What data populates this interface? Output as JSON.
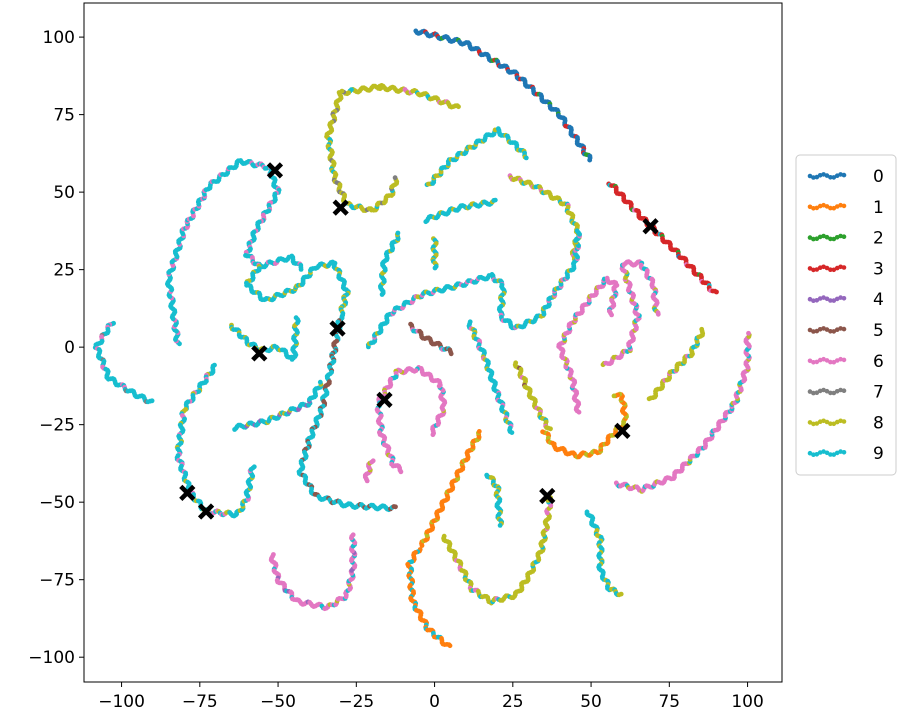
{
  "chart_data": {
    "type": "scatter",
    "title": "",
    "xlabel": "",
    "ylabel": "",
    "xlim": [
      -112,
      111
    ],
    "ylim": [
      -108,
      111
    ],
    "xticks": [
      -100,
      -75,
      -50,
      -25,
      0,
      25,
      50,
      75,
      100
    ],
    "xtick_labels": [
      "−100",
      "−75",
      "−50",
      "−25",
      "0",
      "25",
      "50",
      "75",
      "100"
    ],
    "yticks": [
      -100,
      -75,
      -50,
      -25,
      0,
      25,
      50,
      75,
      100
    ],
    "ytick_labels": [
      "−100",
      "−75",
      "−50",
      "−25",
      "0",
      "25",
      "50",
      "75",
      "100"
    ],
    "grid": false,
    "legend_position": "right",
    "legend": [
      {
        "label": "0",
        "color": "#1f77b4"
      },
      {
        "label": "1",
        "color": "#ff7f0e"
      },
      {
        "label": "2",
        "color": "#2ca02c"
      },
      {
        "label": "3",
        "color": "#d62728"
      },
      {
        "label": "4",
        "color": "#9467bd"
      },
      {
        "label": "5",
        "color": "#8c564b"
      },
      {
        "label": "6",
        "color": "#e377c2"
      },
      {
        "label": "7",
        "color": "#7f7f7f"
      },
      {
        "label": "8",
        "color": "#bcbd22"
      },
      {
        "label": "9",
        "color": "#17becf"
      }
    ],
    "curves": [
      {
        "dominant": "0",
        "mix": [
          "2",
          "3"
        ],
        "points": [
          [
            -6,
            102
          ],
          [
            10,
            98
          ],
          [
            26,
            88
          ],
          [
            40,
            75
          ],
          [
            50,
            60
          ]
        ]
      },
      {
        "dominant": "3",
        "mix": [
          "6",
          "9",
          "0",
          "2"
        ],
        "points": [
          [
            56,
            53
          ],
          [
            66,
            42
          ],
          [
            78,
            30
          ],
          [
            90,
            17
          ]
        ]
      },
      {
        "dominant": "9",
        "mix": [
          "6"
        ],
        "points": [
          [
            -82,
            1
          ],
          [
            -85,
            22
          ],
          [
            -80,
            38
          ],
          [
            -72,
            52
          ],
          [
            -62,
            60
          ],
          [
            -53,
            58
          ],
          [
            -50,
            50
          ],
          [
            -57,
            38
          ],
          [
            -60,
            30
          ],
          [
            -56,
            26
          ],
          [
            -46,
            29
          ],
          [
            -42,
            25
          ]
        ]
      },
      {
        "dominant": "9",
        "mix": [
          "8"
        ],
        "points": [
          [
            -56,
            26
          ],
          [
            -60,
            20
          ],
          [
            -54,
            15
          ],
          [
            -44,
            19
          ],
          [
            -38,
            26
          ],
          [
            -32,
            27
          ],
          [
            -28,
            18
          ],
          [
            -30,
            10
          ]
        ]
      },
      {
        "dominant": "9",
        "mix": [
          "5"
        ],
        "points": [
          [
            -30,
            10
          ],
          [
            -33,
            -6
          ],
          [
            -36,
            -20
          ],
          [
            -40,
            -30
          ],
          [
            -43,
            -40
          ],
          [
            -38,
            -48
          ],
          [
            -28,
            -51
          ],
          [
            -12,
            -52
          ]
        ]
      },
      {
        "dominant": "9",
        "mix": [
          "7",
          "6"
        ],
        "points": [
          [
            -103,
            8
          ],
          [
            -108,
            0
          ],
          [
            -104,
            -10
          ],
          [
            -96,
            -15
          ],
          [
            -90,
            -18
          ]
        ]
      },
      {
        "dominant": "9",
        "mix": [
          "8"
        ],
        "points": [
          [
            -65,
            7
          ],
          [
            -59,
            1
          ],
          [
            -55,
            -1
          ],
          [
            -50,
            0
          ],
          [
            -45,
            -4
          ],
          [
            -44,
            10
          ]
        ]
      },
      {
        "dominant": "9",
        "mix": [
          "8",
          "6"
        ],
        "points": [
          [
            -70,
            -6
          ],
          [
            -80,
            -20
          ],
          [
            -82,
            -35
          ],
          [
            -78,
            -47
          ],
          [
            -73,
            -53
          ],
          [
            -63,
            -54
          ],
          [
            -60,
            -49
          ],
          [
            -58,
            -38
          ]
        ]
      },
      {
        "dominant": "9",
        "mix": [
          "8",
          "4"
        ],
        "points": [
          [
            -64,
            -26
          ],
          [
            -54,
            -24
          ],
          [
            -40,
            -18
          ],
          [
            -36,
            -11
          ]
        ]
      },
      {
        "dominant": "8",
        "mix": [
          "9",
          "6"
        ],
        "points": [
          [
            -18,
            84
          ],
          [
            -5,
            82
          ],
          [
            8,
            77
          ]
        ]
      },
      {
        "dominant": "8",
        "mix": [
          "9",
          "7"
        ],
        "points": [
          [
            -17,
            84
          ],
          [
            -30,
            82
          ],
          [
            -34,
            68
          ],
          [
            -32,
            55
          ],
          [
            -28,
            46
          ],
          [
            -20,
            44
          ],
          [
            -14,
            49
          ],
          [
            -12,
            55
          ]
        ]
      },
      {
        "dominant": "9",
        "mix": [
          "8"
        ],
        "points": [
          [
            -2,
            52
          ],
          [
            5,
            60
          ],
          [
            14,
            66
          ],
          [
            20,
            70
          ],
          [
            25,
            66
          ],
          [
            30,
            61
          ]
        ]
      },
      {
        "dominant": "8",
        "mix": [
          "9",
          "6"
        ],
        "points": [
          [
            24,
            55
          ],
          [
            32,
            52
          ],
          [
            42,
            46
          ],
          [
            46,
            37
          ],
          [
            44,
            28
          ]
        ]
      },
      {
        "dominant": "9",
        "mix": [
          "8"
        ],
        "points": [
          [
            -17,
            17
          ],
          [
            -16,
            28
          ],
          [
            -11,
            37
          ]
        ]
      },
      {
        "dominant": "9",
        "mix": [
          "8"
        ],
        "points": [
          [
            -3,
            41
          ],
          [
            8,
            45
          ],
          [
            20,
            47
          ]
        ]
      },
      {
        "dominant": "9",
        "mix": [
          "8"
        ],
        "points": [
          [
            0,
            35
          ],
          [
            0,
            25
          ]
        ]
      },
      {
        "dominant": "9",
        "mix": [
          "8",
          "6"
        ],
        "points": [
          [
            -21,
            0
          ],
          [
            -14,
            11
          ],
          [
            -4,
            17
          ],
          [
            8,
            20
          ],
          [
            18,
            23
          ],
          [
            22,
            20
          ],
          [
            21,
            10
          ],
          [
            26,
            6
          ],
          [
            34,
            10
          ],
          [
            38,
            17
          ],
          [
            45,
            27
          ],
          [
            46,
            38
          ]
        ]
      },
      {
        "dominant": "5",
        "mix": [
          "3",
          "9",
          "6"
        ],
        "points": [
          [
            -8,
            7
          ],
          [
            -3,
            3
          ],
          [
            6,
            -2
          ]
        ]
      },
      {
        "dominant": "9",
        "mix": [
          "8",
          "6"
        ],
        "points": [
          [
            11,
            8
          ],
          [
            16,
            -3
          ],
          [
            20,
            -15
          ],
          [
            25,
            -28
          ]
        ]
      },
      {
        "dominant": "8",
        "mix": [
          "5",
          "9",
          "6"
        ],
        "points": [
          [
            26,
            -5
          ],
          [
            30,
            -14
          ],
          [
            34,
            -22
          ],
          [
            37,
            -27
          ]
        ]
      },
      {
        "dominant": "6",
        "mix": [
          "8",
          "9"
        ],
        "points": [
          [
            -1,
            -28
          ],
          [
            3,
            -20
          ],
          [
            2,
            -12
          ],
          [
            -5,
            -7
          ],
          [
            -12,
            -8
          ],
          [
            -18,
            -18
          ],
          [
            -17,
            -28
          ],
          [
            -13,
            -38
          ],
          [
            -10,
            -40
          ]
        ]
      },
      {
        "dominant": "6",
        "mix": [
          "8"
        ],
        "points": [
          [
            -22,
            -43
          ],
          [
            -20,
            -36
          ]
        ]
      },
      {
        "dominant": "1",
        "mix": [
          "8"
        ],
        "points": [
          [
            -4,
            -64
          ],
          [
            2,
            -52
          ],
          [
            8,
            -40
          ],
          [
            12,
            -32
          ],
          [
            15,
            -27
          ]
        ]
      },
      {
        "dominant": "1",
        "mix": [
          "9"
        ],
        "points": [
          [
            -5,
            -65
          ],
          [
            -8,
            -70
          ],
          [
            -7,
            -82
          ],
          [
            -2,
            -91
          ],
          [
            5,
            -97
          ]
        ]
      },
      {
        "dominant": "6",
        "mix": [
          "8",
          "9",
          "4"
        ],
        "points": [
          [
            -52,
            -67
          ],
          [
            -50,
            -75
          ],
          [
            -44,
            -82
          ],
          [
            -34,
            -84
          ],
          [
            -28,
            -80
          ],
          [
            -26,
            -72
          ],
          [
            -26,
            -60
          ]
        ]
      },
      {
        "dominant": "8",
        "mix": [
          "9",
          "6"
        ],
        "points": [
          [
            3,
            -61
          ],
          [
            8,
            -70
          ],
          [
            12,
            -78
          ],
          [
            18,
            -82
          ],
          [
            26,
            -80
          ],
          [
            30,
            -74
          ],
          [
            34,
            -66
          ],
          [
            36,
            -56
          ],
          [
            37,
            -48
          ]
        ]
      },
      {
        "dominant": "9",
        "mix": [
          "8"
        ],
        "points": [
          [
            17,
            -41
          ],
          [
            20,
            -45
          ],
          [
            21,
            -58
          ]
        ]
      },
      {
        "dominant": "1",
        "mix": [
          "8"
        ],
        "points": [
          [
            35,
            -27
          ],
          [
            38,
            -32
          ],
          [
            45,
            -35
          ],
          [
            52,
            -34
          ],
          [
            57,
            -28
          ],
          [
            61,
            -24
          ],
          [
            60,
            -16
          ],
          [
            57,
            -15
          ]
        ]
      },
      {
        "dominant": "6",
        "mix": [
          "8",
          "9"
        ],
        "points": [
          [
            46,
            -21
          ],
          [
            44,
            -10
          ],
          [
            40,
            0
          ],
          [
            44,
            8
          ],
          [
            50,
            16
          ],
          [
            55,
            22
          ],
          [
            58,
            20
          ],
          [
            56,
            10
          ]
        ]
      },
      {
        "dominant": "6",
        "mix": [
          "8",
          "9"
        ],
        "points": [
          [
            54,
            -6
          ],
          [
            62,
            -1
          ],
          [
            65,
            10
          ],
          [
            62,
            20
          ],
          [
            60,
            27
          ],
          [
            66,
            27
          ],
          [
            70,
            20
          ],
          [
            71,
            10
          ]
        ]
      },
      {
        "dominant": "8",
        "mix": [
          "6",
          "9"
        ],
        "points": [
          [
            69,
            -17
          ],
          [
            76,
            -8
          ],
          [
            82,
            -2
          ],
          [
            86,
            6
          ]
        ]
      },
      {
        "dominant": "6",
        "mix": [
          "8",
          "9"
        ],
        "points": [
          [
            58,
            -44
          ],
          [
            66,
            -46
          ],
          [
            76,
            -42
          ],
          [
            86,
            -32
          ],
          [
            96,
            -18
          ],
          [
            100,
            -6
          ],
          [
            100,
            5
          ]
        ]
      },
      {
        "dominant": "9",
        "mix": [
          "8"
        ],
        "points": [
          [
            49,
            -53
          ],
          [
            53,
            -62
          ],
          [
            53,
            -72
          ],
          [
            56,
            -78
          ],
          [
            60,
            -80
          ]
        ]
      }
    ],
    "centroids": [
      [
        -51,
        57
      ],
      [
        -30,
        45
      ],
      [
        69,
        39
      ],
      [
        -31,
        6
      ],
      [
        -56,
        -2
      ],
      [
        -16,
        -17
      ],
      [
        60,
        -27
      ],
      [
        -79,
        -47
      ],
      [
        -73,
        -53
      ],
      [
        36,
        -48
      ]
    ]
  }
}
